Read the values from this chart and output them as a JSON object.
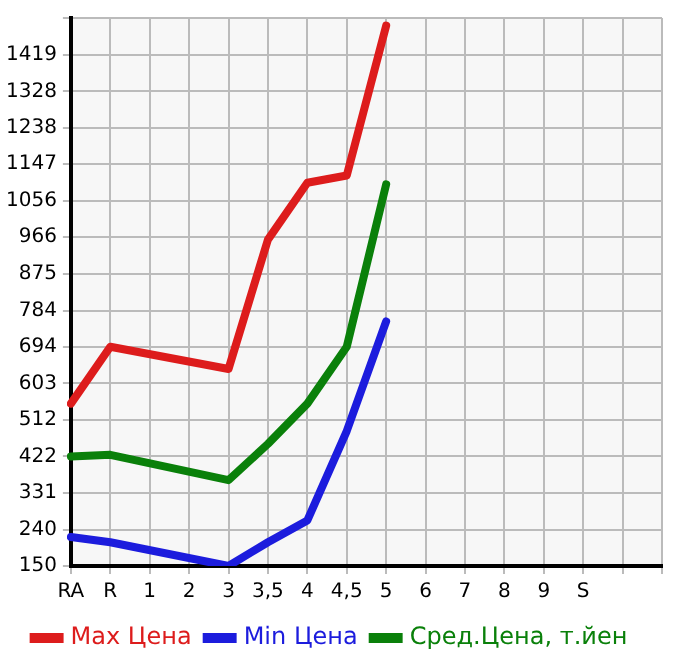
{
  "chart_data": {
    "type": "line",
    "categories": [
      "RA",
      "R",
      "1",
      "2",
      "3",
      "3,5",
      "4",
      "4,5",
      "5",
      "6",
      "7",
      "8",
      "9",
      "S",
      null,
      null
    ],
    "series": [
      {
        "name": "Max Цена",
        "color": "#dd1c1c",
        "values": [
          553,
          694,
          null,
          null,
          639,
          960,
          1101,
          1119,
          1491,
          null,
          null,
          null,
          null,
          null,
          null,
          null
        ]
      },
      {
        "name": "Min Цена",
        "color": "#1c1cdd",
        "values": [
          222,
          209,
          null,
          null,
          150,
          209,
          263,
          485,
          757,
          null,
          null,
          null,
          null,
          null,
          null,
          null
        ]
      },
      {
        "name": "Сред.Цена, т.йен",
        "color": "#0a800a",
        "values": [
          422,
          426,
          null,
          null,
          363,
          453,
          553,
          694,
          1097,
          null,
          null,
          null,
          null,
          null,
          null,
          null
        ]
      }
    ],
    "ylim": [
      150,
      1510
    ],
    "yticks": [
      150,
      240,
      331,
      422,
      512,
      603,
      694,
      784,
      875,
      966,
      1056,
      1147,
      1238,
      1328,
      1419,
      {
        "value": 1510,
        "label": null
      }
    ],
    "grid": true,
    "legend": "bottom",
    "marker": "none",
    "line_style": "solid"
  }
}
